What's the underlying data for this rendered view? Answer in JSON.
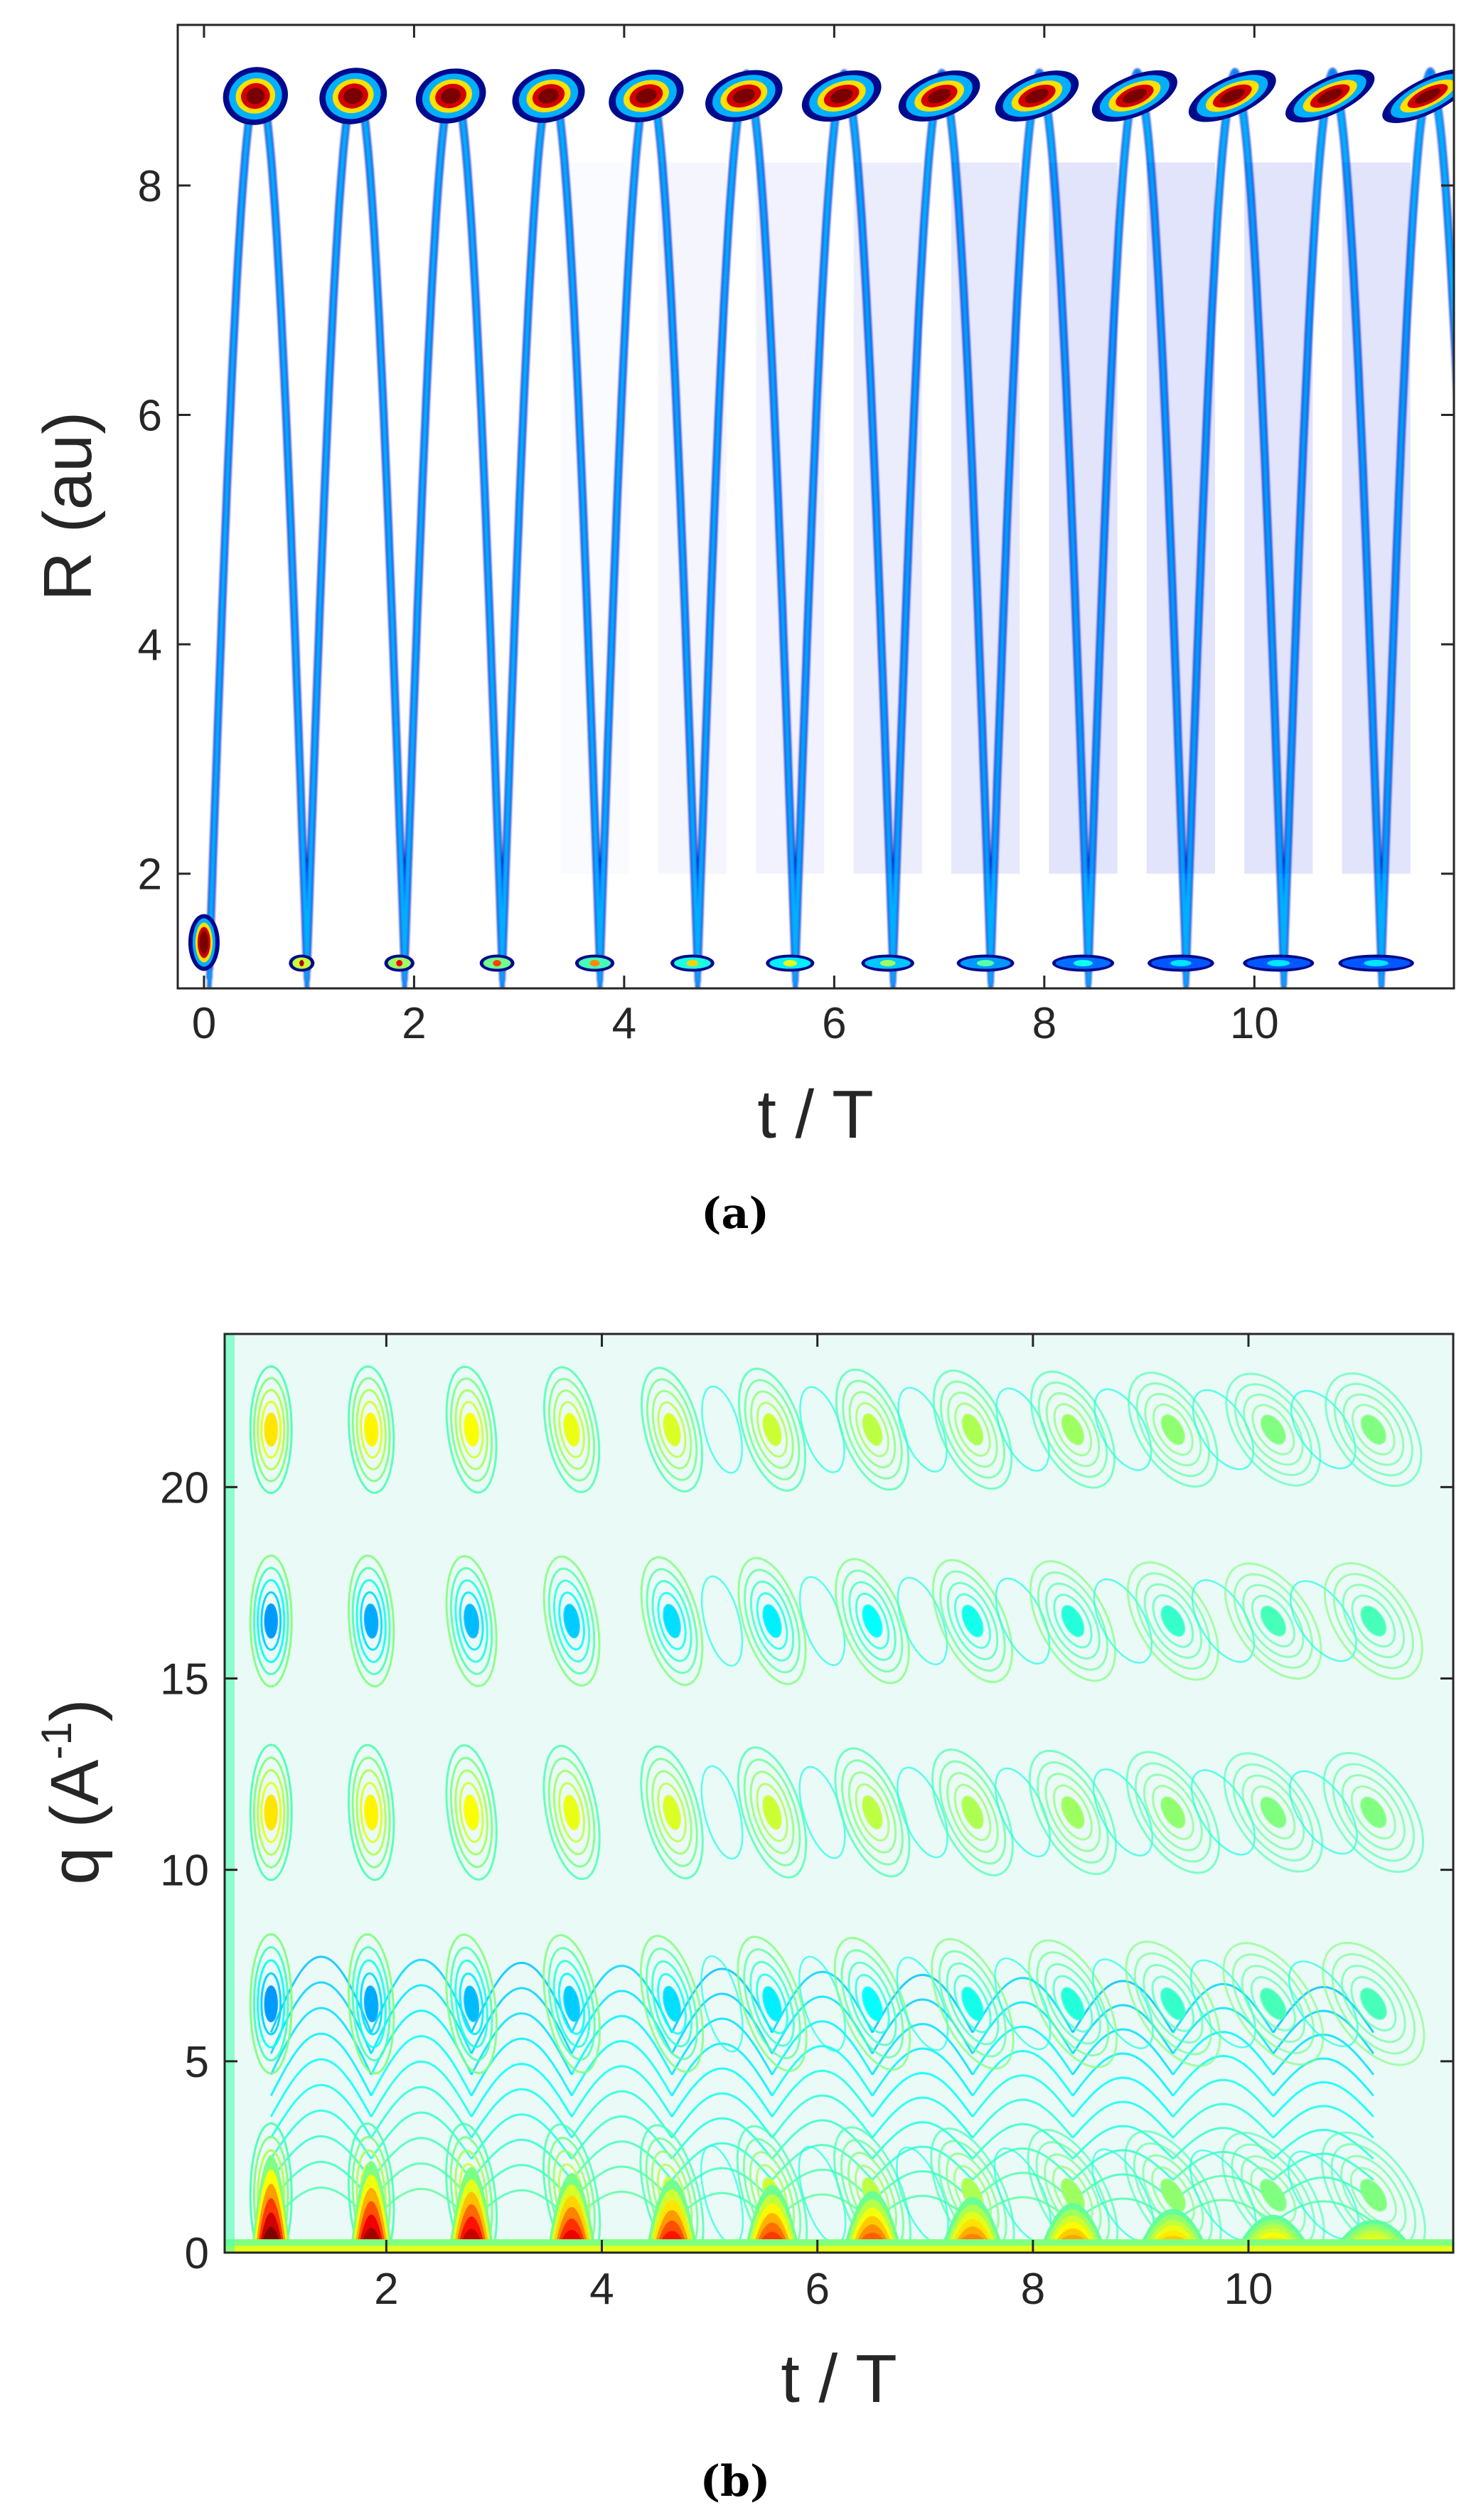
{
  "chart_data": [
    {
      "type": "heatmap",
      "subtype": "contour",
      "caption": "(a)",
      "xlabel": "t / T",
      "ylabel": "R (au)",
      "xlim": [
        -0.25,
        11.9
      ],
      "ylim": [
        1.0,
        9.4
      ],
      "xticks": [
        0,
        2,
        4,
        6,
        8,
        10
      ],
      "yticks": [
        2,
        4,
        6,
        8
      ],
      "colormap": "jet",
      "grid": false,
      "oscillation_period_T": 0.93,
      "R_min": 1.2,
      "R_max": 8.9,
      "start_R": 1.4,
      "inner_turning_times": [
        0.93,
        1.86,
        2.79,
        3.72,
        4.65,
        5.58,
        6.51,
        7.44,
        8.37,
        9.3,
        10.23,
        11.16
      ],
      "outer_turning_times": [
        0.47,
        1.4,
        2.33,
        3.26,
        4.19,
        5.12,
        6.05,
        6.98,
        7.91,
        8.84,
        9.77,
        10.7,
        11.63
      ]
    },
    {
      "type": "heatmap",
      "subtype": "contour",
      "caption": "(b)",
      "xlabel": "t / T",
      "ylabel_main": "q (A",
      "ylabel_sup": "-1",
      "ylabel_end": ")",
      "xlim": [
        0.5,
        11.9
      ],
      "ylim": [
        0,
        24
      ],
      "xticks": [
        2,
        4,
        6,
        8,
        10
      ],
      "yticks": [
        0,
        5,
        10,
        15,
        20
      ],
      "colormap": "jet",
      "grid": false,
      "low_q_peak_times": [
        0.93,
        1.86,
        2.79,
        3.72,
        4.65,
        5.58,
        6.51,
        7.44,
        8.37,
        9.3,
        10.23,
        11.16
      ],
      "fringe_centers_q": [
        1.5,
        6.5,
        11.5,
        16.5,
        21.5
      ]
    }
  ]
}
